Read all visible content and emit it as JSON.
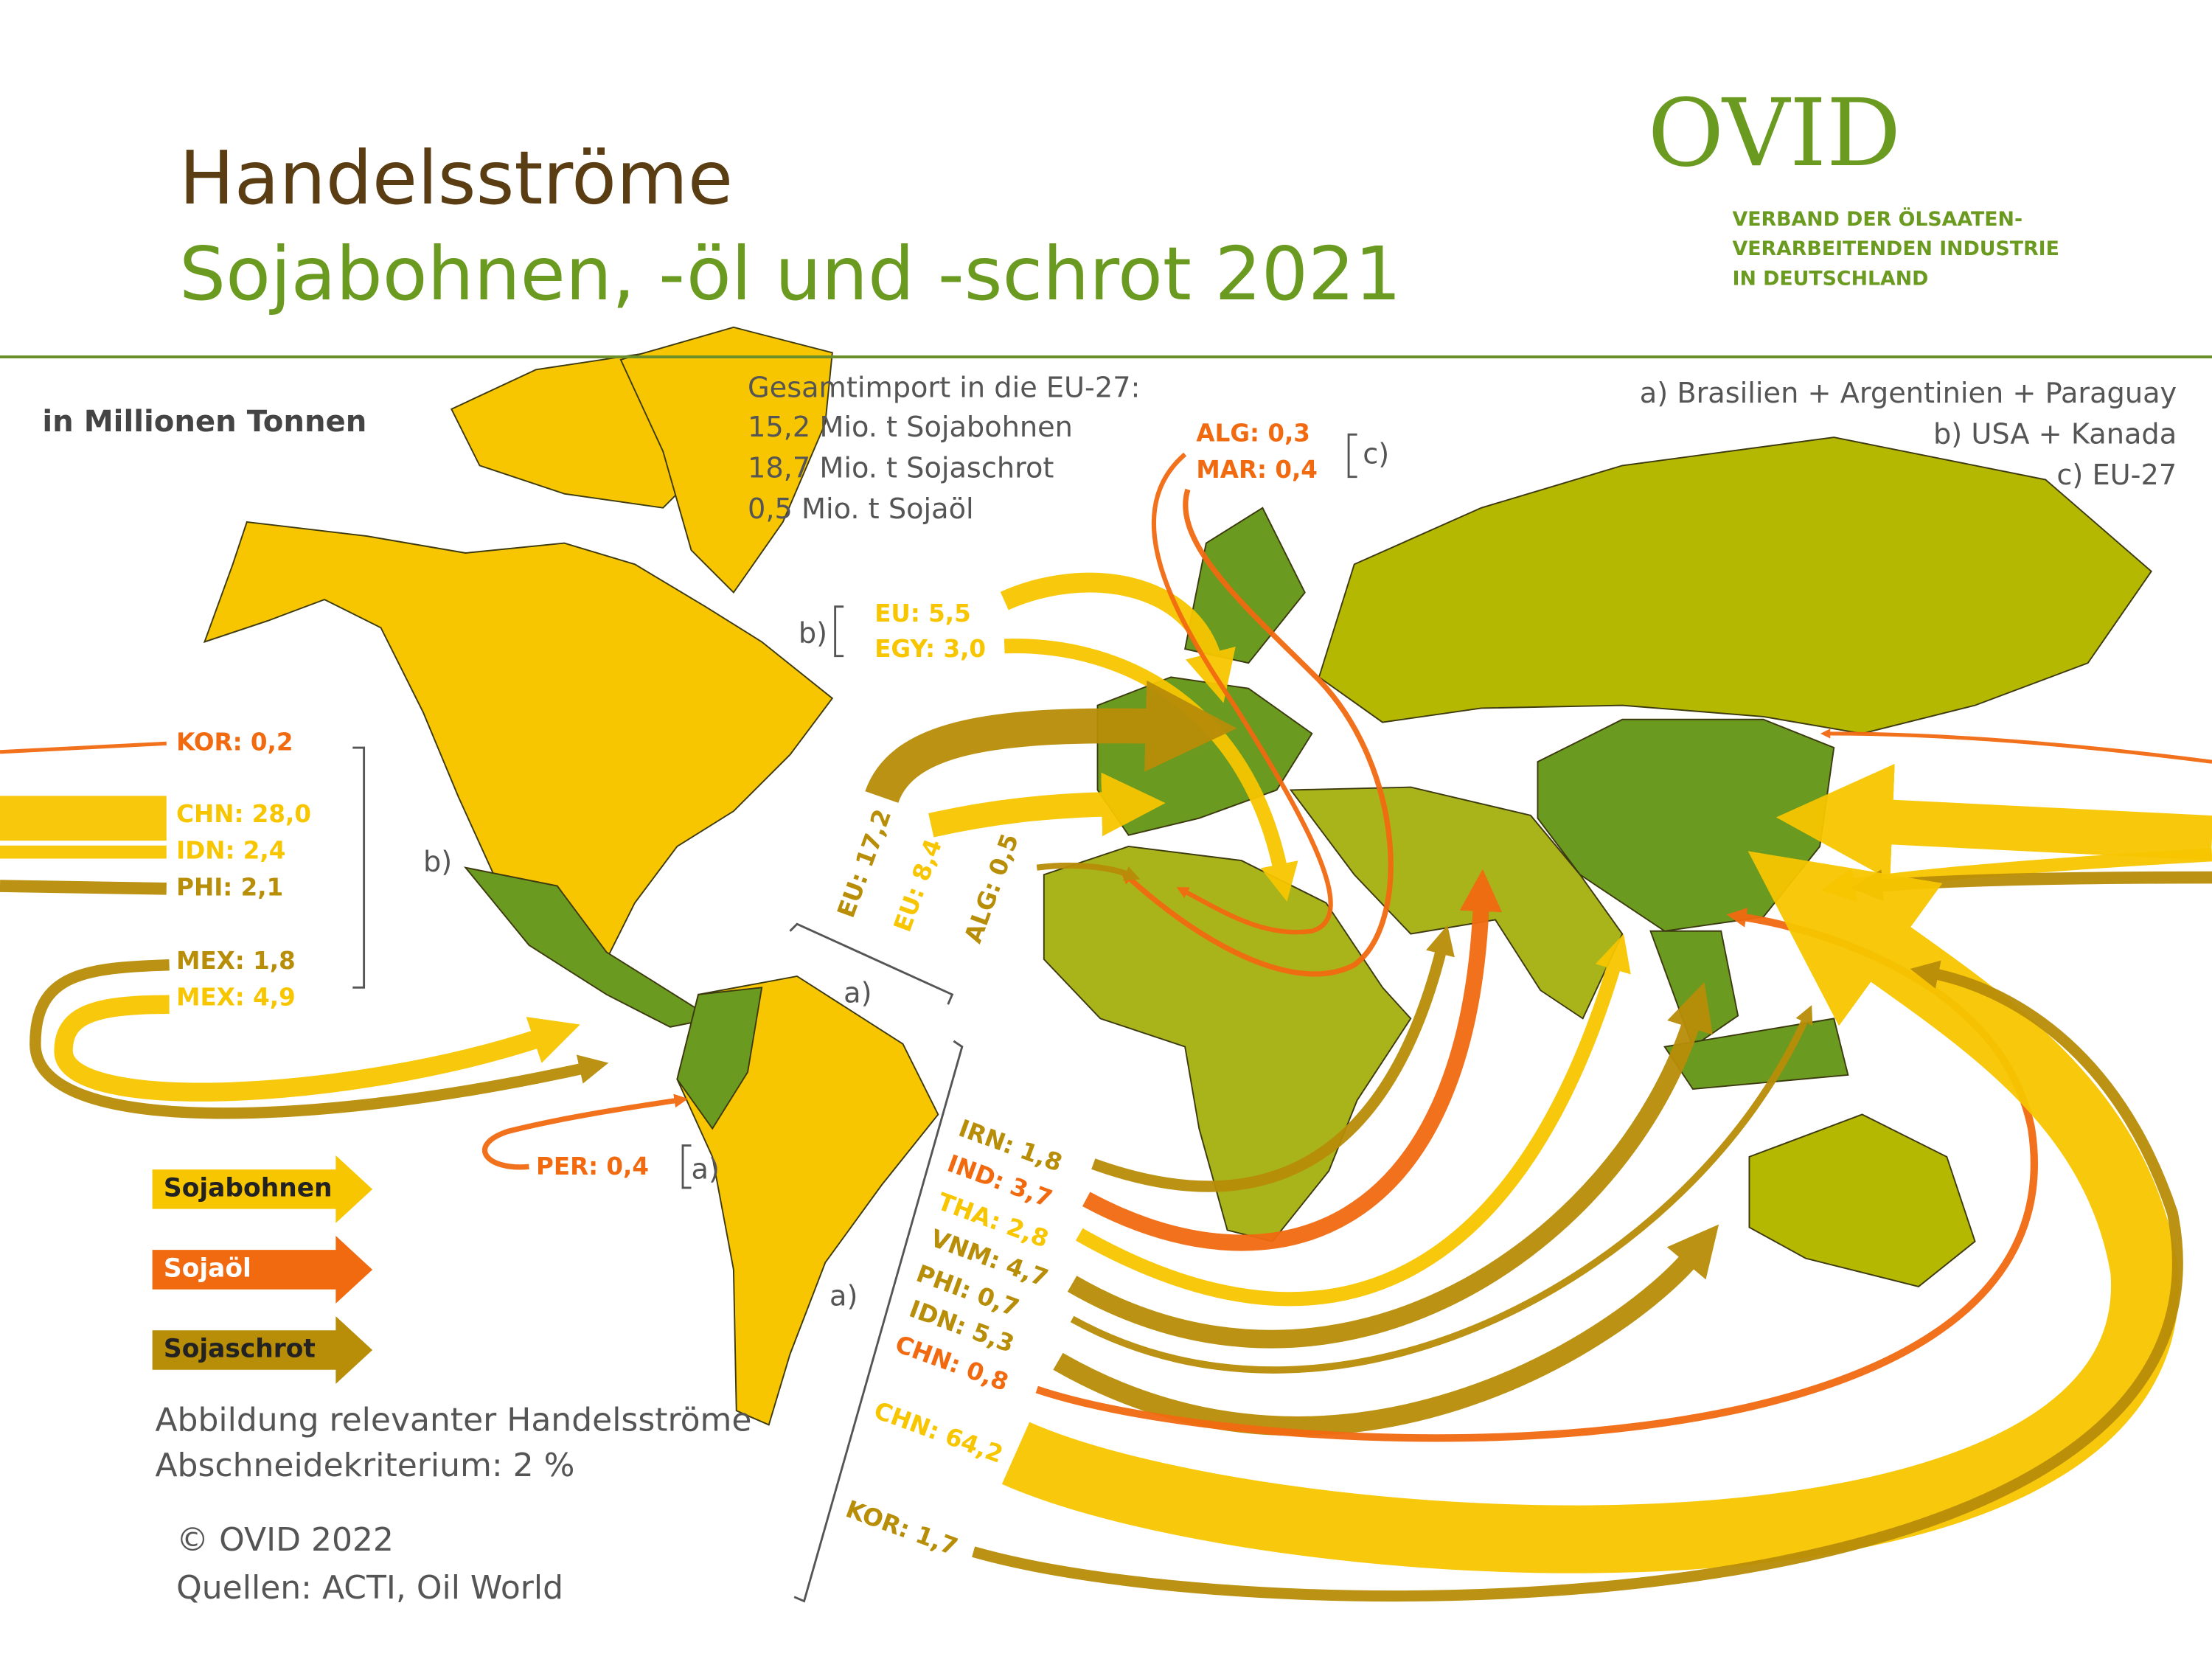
{
  "header": {
    "title_line1": "Handelsströme",
    "title_line2": "Sojabohnen, -öl und -schrot 2021",
    "unit": "in Millionen Tonnen"
  },
  "logo": {
    "name": "OVID",
    "subtitle_lines": [
      "VERBAND DER ÖLSAATEN-",
      "VERARBEITENDEN INDUSTRIE",
      "IN DEUTSCHLAND"
    ]
  },
  "eu_import": {
    "heading": "Gesamtimport in die EU-27:",
    "lines": [
      "15,2 Mio. t Sojabohnen",
      "18,7 Mio. t Sojaschrot",
      "0,5 Mio. t Sojaöl"
    ]
  },
  "footnotes": [
    "a) Brasilien + Argentinien + Paraguay",
    "b) USA + Kanada",
    "c) EU-27"
  ],
  "legend": [
    {
      "label": "Sojabohnen",
      "color": "#f7c600"
    },
    {
      "label": "Sojaöl",
      "color": "#f26a10"
    },
    {
      "label": "Sojaschrot",
      "color": "#b88d08"
    }
  ],
  "origin_labels": [
    "b)",
    "b)",
    "a)",
    "a)",
    "a)",
    "c)"
  ],
  "flows": [
    {
      "label": "KOR: 0,2",
      "value": 0.2,
      "product": 1
    },
    {
      "label": "CHN: 28,0",
      "value": 28.0,
      "product": 0
    },
    {
      "label": "IDN: 2,4",
      "value": 2.4,
      "product": 0
    },
    {
      "label": "PHI: 2,1",
      "value": 2.1,
      "product": 2
    },
    {
      "label": "MEX: 1,8",
      "value": 1.8,
      "product": 2
    },
    {
      "label": "MEX: 4,9",
      "value": 4.9,
      "product": 0
    },
    {
      "label": "EU: 5,5",
      "value": 5.5,
      "product": 0
    },
    {
      "label": "EGY: 3,0",
      "value": 3.0,
      "product": 0
    },
    {
      "label": "ALG: 0,3",
      "value": 0.3,
      "product": 1
    },
    {
      "label": "MAR: 0,4",
      "value": 0.4,
      "product": 1
    },
    {
      "label": "EU: 17,2",
      "value": 17.2,
      "product": 2
    },
    {
      "label": "EU: 8,4",
      "value": 8.4,
      "product": 0
    },
    {
      "label": "ALG: 0,5",
      "value": 0.5,
      "product": 2
    },
    {
      "label": "PER: 0,4",
      "value": 0.4,
      "product": 1
    },
    {
      "label": "IRN: 1,8",
      "value": 1.8,
      "product": 2
    },
    {
      "label": "IND: 3,7",
      "value": 3.7,
      "product": 1
    },
    {
      "label": "THA: 2,8",
      "value": 2.8,
      "product": 0
    },
    {
      "label": "VNM: 4,7",
      "value": 4.7,
      "product": 2
    },
    {
      "label": "PHI: 0,7",
      "value": 0.7,
      "product": 2
    },
    {
      "label": "IDN: 5,3",
      "value": 5.3,
      "product": 2
    },
    {
      "label": "CHN: 0,8",
      "value": 0.8,
      "product": 1
    },
    {
      "label": "CHN: 64,2",
      "value": 64.2,
      "product": 0
    },
    {
      "label": "KOR: 1,7",
      "value": 1.7,
      "product": 2
    }
  ],
  "notes": [
    "Abbildung relevanter Handelsströme",
    "Abschneidekriterium: 2 %"
  ],
  "credits": [
    "© OVID 2022",
    "Quellen: ACTI, Oil World"
  ]
}
